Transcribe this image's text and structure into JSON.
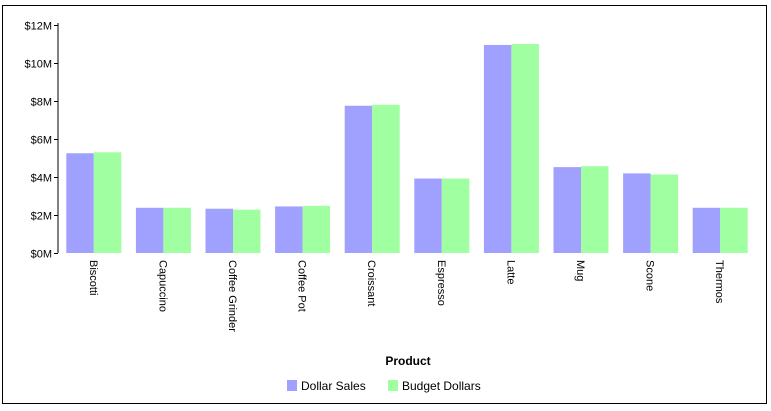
{
  "chart_data": {
    "type": "bar",
    "categories": [
      "Biscotti",
      "Capuccino",
      "Coffee Grinder",
      "Coffee Pot",
      "Croissant",
      "Espresso",
      "Latte",
      "Mug",
      "Scone",
      "Thermos"
    ],
    "series": [
      {
        "name": "Dollar Sales",
        "color": "#a0a0ff",
        "values": [
          5.25,
          2.38,
          2.33,
          2.45,
          7.75,
          3.92,
          10.95,
          4.52,
          4.19,
          2.38
        ]
      },
      {
        "name": "Budget Dollars",
        "color": "#a0ffa0",
        "values": [
          5.3,
          2.38,
          2.28,
          2.48,
          7.8,
          3.92,
          11.0,
          4.57,
          4.13,
          2.38
        ]
      }
    ],
    "xlabel": "Product",
    "ylabel": "",
    "ylim": [
      0,
      12
    ],
    "yticks": [
      0,
      2,
      4,
      6,
      8,
      10,
      12
    ],
    "ytick_labels": [
      "$0M",
      "$2M",
      "$4M",
      "$6M",
      "$8M",
      "$10M",
      "$12M"
    ],
    "grid": false,
    "legend": "bottom-center"
  }
}
